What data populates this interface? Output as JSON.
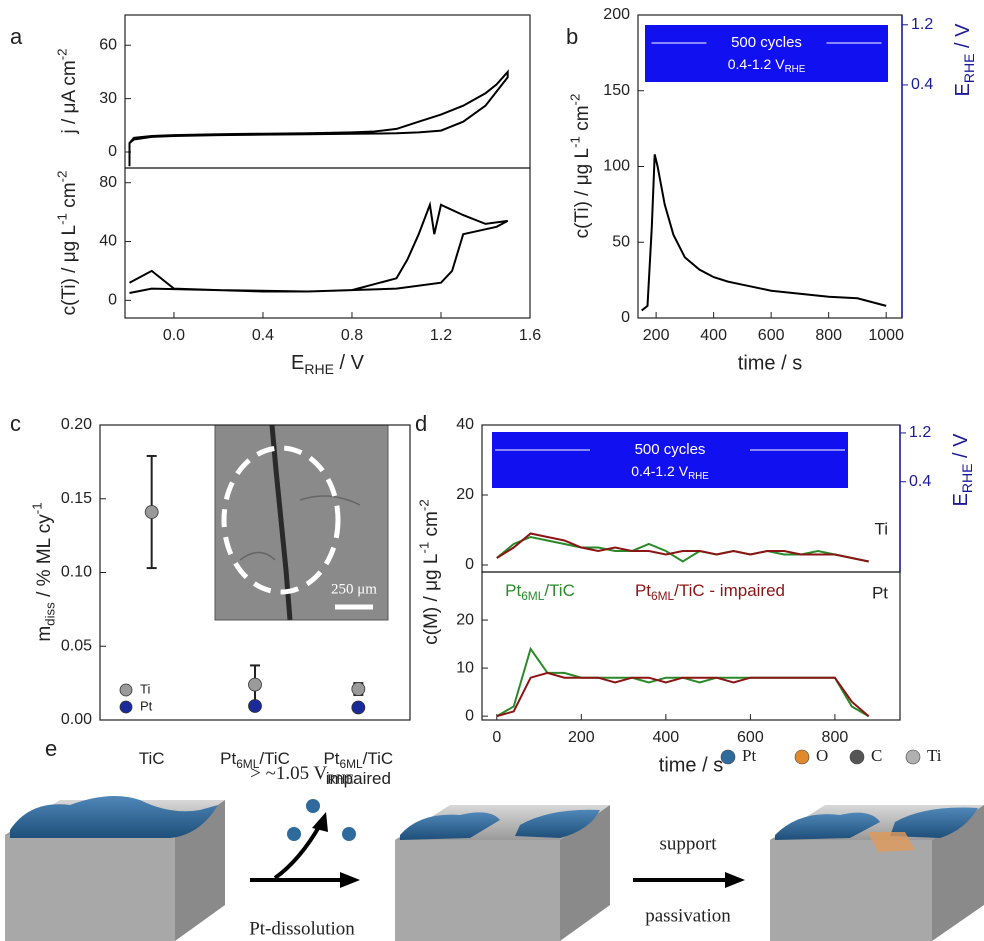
{
  "chart_data": [
    {
      "type": "line",
      "panel_label": "a",
      "y_label": [
        "j / μA cm",
        "-2"
      ],
      "xlim": [
        -0.22,
        1.6
      ],
      "ylim": [
        -9,
        77
      ],
      "yticks": [
        0,
        30,
        60
      ],
      "series": [
        {
          "color": "#000000",
          "x": [
            -0.2,
            -0.2,
            -0.18,
            -0.1,
            0,
            0.2,
            0.4,
            0.6,
            0.8,
            0.9,
            1.0,
            1.1,
            1.2,
            1.3,
            1.4,
            1.45,
            1.5,
            1.5,
            1.45,
            1.4,
            1.3,
            1.2,
            1.1,
            1.0,
            0.8,
            0.6,
            0.4,
            0.2,
            0,
            -0.1,
            -0.18,
            -0.2
          ],
          "y": [
            -8,
            5,
            8,
            9,
            9.5,
            10,
            10.3,
            10.5,
            11,
            11.5,
            13,
            17,
            21,
            26,
            33,
            38,
            45,
            42,
            34,
            26,
            17,
            12,
            11,
            10.5,
            10.2,
            10,
            9.8,
            9.5,
            9,
            8.5,
            7,
            5
          ]
        }
      ]
    },
    {
      "type": "line",
      "y_label": [
        "c(Ti) / μg L",
        "-1",
        " cm",
        "-2"
      ],
      "x_label": [
        "E",
        "RHE",
        " / V"
      ],
      "xlim": [
        -0.22,
        1.6
      ],
      "ylim": [
        -12,
        90
      ],
      "yticks": [
        0,
        40,
        80
      ],
      "xticks": [
        {
          "value": 0,
          "label": "0.0"
        },
        {
          "value": 0.4,
          "label": "0.4"
        },
        {
          "value": 0.8,
          "label": "0.8"
        },
        {
          "value": 1.2,
          "label": "1.2"
        },
        {
          "value": 1.6,
          "label": "1.6"
        }
      ],
      "series": [
        {
          "color": "#000000",
          "x": [
            -0.2,
            -0.1,
            0,
            0.2,
            0.4,
            0.6,
            0.8,
            1.0,
            1.05,
            1.1,
            1.15,
            1.17,
            1.2,
            1.3,
            1.4,
            1.5,
            1.45,
            1.3,
            1.25,
            1.2,
            1.0,
            0.6,
            0.2,
            -0.1,
            -0.2
          ],
          "y": [
            12,
            20,
            8,
            7,
            6,
            6,
            7,
            15,
            28,
            45,
            65,
            45,
            65,
            58,
            52,
            54,
            50,
            45,
            20,
            12,
            8,
            6,
            7,
            8,
            5
          ]
        }
      ]
    },
    {
      "type": "line",
      "panel_label": "b",
      "y_label": [
        "c(Ti) / μg L",
        "-1",
        " cm",
        "-2"
      ],
      "x_label": "time / s",
      "y2_label": [
        "E",
        "RHE",
        " / V"
      ],
      "xlim": [
        137,
        1055
      ],
      "ylim": [
        0,
        200
      ],
      "yticks": [
        0,
        50,
        100,
        150,
        200
      ],
      "xticks": [
        200,
        400,
        600,
        800,
        1000
      ],
      "y2lim": [
        -2.7,
        1.33
      ],
      "y2ticks": [
        0.4,
        1.2
      ],
      "annotation": {
        "title": "500 cycles",
        "range": [
          "0.4-1.2 V",
          "RHE"
        ]
      },
      "series": [
        {
          "color": "#000000",
          "x": [
            150,
            170,
            185,
            195,
            205,
            230,
            260,
            300,
            350,
            400,
            450,
            500,
            600,
            700,
            800,
            900,
            1000
          ],
          "y": [
            5,
            8,
            60,
            108,
            100,
            75,
            55,
            40,
            32,
            27,
            24,
            22,
            18,
            16,
            14,
            13,
            8
          ]
        }
      ]
    },
    {
      "type": "errorbar",
      "panel_label": "c",
      "y_label": [
        "m",
        "diss",
        " / % ML cy",
        "-1"
      ],
      "categories": [
        [
          [
            "TiC"
          ]
        ],
        [
          [
            "Pt",
            "6ML",
            "/TiC"
          ]
        ],
        [
          [
            "Pt",
            "6ML",
            "/TiC"
          ],
          [
            "impaired"
          ]
        ]
      ],
      "ylim": [
        0,
        0.2
      ],
      "yticks": [
        {
          "value": 0,
          "label": "0.00"
        },
        {
          "value": 0.05,
          "label": "0.05"
        },
        {
          "value": 0.1,
          "label": "0.10"
        },
        {
          "value": 0.15,
          "label": "0.15"
        },
        {
          "value": 0.2,
          "label": "0.20"
        }
      ],
      "inset_scale": "250 μm",
      "series": [
        {
          "name": "Ti",
          "color": "#9a9a9a",
          "values": [
            0.141,
            0.024,
            0.021
          ],
          "errors": [
            0.038,
            0.013,
            0.004
          ]
        },
        {
          "name": "Pt",
          "color": "#1a2a9a",
          "values": [
            null,
            0.0095,
            0.0085
          ],
          "errors": [
            null,
            null,
            null
          ]
        }
      ]
    },
    {
      "type": "line",
      "panel_label": "d",
      "y_label": [
        "c(M) / μg L",
        "-1",
        " cm",
        "-2"
      ],
      "y2_label": [
        "E",
        "RHE",
        " / V"
      ],
      "corner_label": "Ti",
      "xlim": [
        -35,
        954
      ],
      "ylim": [
        -2,
        40
      ],
      "yticks": [
        0,
        20,
        40
      ],
      "y2lim": [
        -1.08,
        1.33
      ],
      "y2ticks": [
        0.4,
        1.2
      ],
      "annotation": {
        "title": "500 cycles",
        "range": [
          "0.4-1.2 V",
          "RHE"
        ]
      },
      "x": [
        0,
        40,
        80,
        120,
        160,
        200,
        240,
        280,
        320,
        360,
        400,
        440,
        480,
        520,
        560,
        600,
        640,
        680,
        720,
        760,
        800,
        840,
        880
      ],
      "series": [
        {
          "name": [
            "Pt",
            "6ML",
            "/TiC"
          ],
          "color": "#2a8a2a",
          "values": [
            2,
            6,
            8,
            7,
            6,
            5,
            5,
            4,
            4,
            6,
            4,
            1,
            4,
            3,
            4,
            3,
            4,
            3,
            3,
            4,
            3,
            2,
            1
          ]
        },
        {
          "name": [
            "Pt",
            "6ML",
            "/TiC - impaired"
          ],
          "color": "#8b1414",
          "values": [
            2,
            5,
            9,
            8,
            7,
            5,
            4,
            5,
            4,
            4,
            3,
            4,
            4,
            3,
            4,
            3,
            4,
            4,
            3,
            3,
            3,
            2,
            1
          ]
        }
      ]
    },
    {
      "type": "line",
      "x_label": "time / s",
      "corner_label": "Pt",
      "xlim": [
        -35,
        954
      ],
      "ylim": [
        -0.8,
        30
      ],
      "yticks": [
        0,
        10,
        20
      ],
      "xticks": [
        0,
        200,
        400,
        600,
        800
      ],
      "x": [
        0,
        40,
        80,
        120,
        160,
        200,
        240,
        280,
        320,
        360,
        400,
        440,
        480,
        520,
        560,
        600,
        640,
        680,
        720,
        760,
        800,
        840,
        880
      ],
      "series": [
        {
          "color": "#2a8a2a",
          "values": [
            0,
            2,
            14,
            9,
            9,
            8,
            8,
            8,
            8,
            7,
            8,
            8,
            7,
            8,
            8,
            8,
            8,
            8,
            8,
            8,
            8,
            2,
            0
          ]
        },
        {
          "color": "#8b1414",
          "values": [
            0,
            1,
            8,
            9,
            8,
            8,
            8,
            7,
            8,
            8,
            7,
            8,
            8,
            8,
            7,
            8,
            8,
            8,
            8,
            8,
            8,
            3,
            0
          ]
        }
      ]
    }
  ],
  "diagram": {
    "panel_label": "e",
    "legend": [
      "Pt",
      "O",
      "C",
      "Ti"
    ],
    "step1_top": [
      "> ~1.05 V",
      "RHE"
    ],
    "step1_bottom": "Pt-dissolution",
    "step2_top": "support",
    "step2_bottom": "passivation"
  }
}
